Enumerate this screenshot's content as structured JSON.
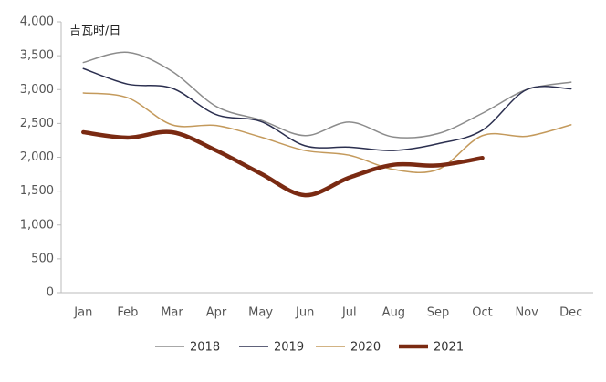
{
  "chart_data": {
    "type": "line",
    "unit_label": "吉瓦时/日",
    "categories": [
      "Jan",
      "Feb",
      "Mar",
      "Apr",
      "May",
      "Jun",
      "Jul",
      "Aug",
      "Sep",
      "Oct",
      "Nov",
      "Dec"
    ],
    "series": [
      {
        "name": "2018",
        "color": "#8c8c8c",
        "width": 1.5,
        "values": [
          3400,
          3550,
          3270,
          2750,
          2550,
          2320,
          2520,
          2300,
          2350,
          2650,
          3000,
          3110
        ]
      },
      {
        "name": "2019",
        "color": "#2b2f4f",
        "width": 1.5,
        "values": [
          3310,
          3080,
          3020,
          2630,
          2530,
          2170,
          2150,
          2100,
          2200,
          2400,
          3000,
          3010
        ]
      },
      {
        "name": "2020",
        "color": "#c49a5c",
        "width": 1.5,
        "values": [
          2950,
          2880,
          2480,
          2470,
          2300,
          2100,
          2030,
          1820,
          1820,
          2320,
          2310,
          2480
        ]
      },
      {
        "name": "2021",
        "color": "#7a2a12",
        "width": 4.5,
        "values": [
          2370,
          2290,
          2370,
          2100,
          1760,
          1440,
          1700,
          1890,
          1880,
          1990,
          null,
          null
        ]
      }
    ],
    "ylim": [
      0,
      4000
    ],
    "yticks": [
      0,
      500,
      {
        "value": 1000,
        "label": "1,000"
      },
      {
        "value": 1500,
        "label": "1,500"
      },
      {
        "value": 2000,
        "label": "2,000"
      },
      {
        "value": 2500,
        "label": "2,500"
      },
      {
        "value": 3000,
        "label": "3,000"
      },
      {
        "value": 3500,
        "label": "3,500"
      },
      {
        "value": 4000,
        "label": "4,000"
      }
    ],
    "grid": false,
    "legend": "bottom"
  }
}
